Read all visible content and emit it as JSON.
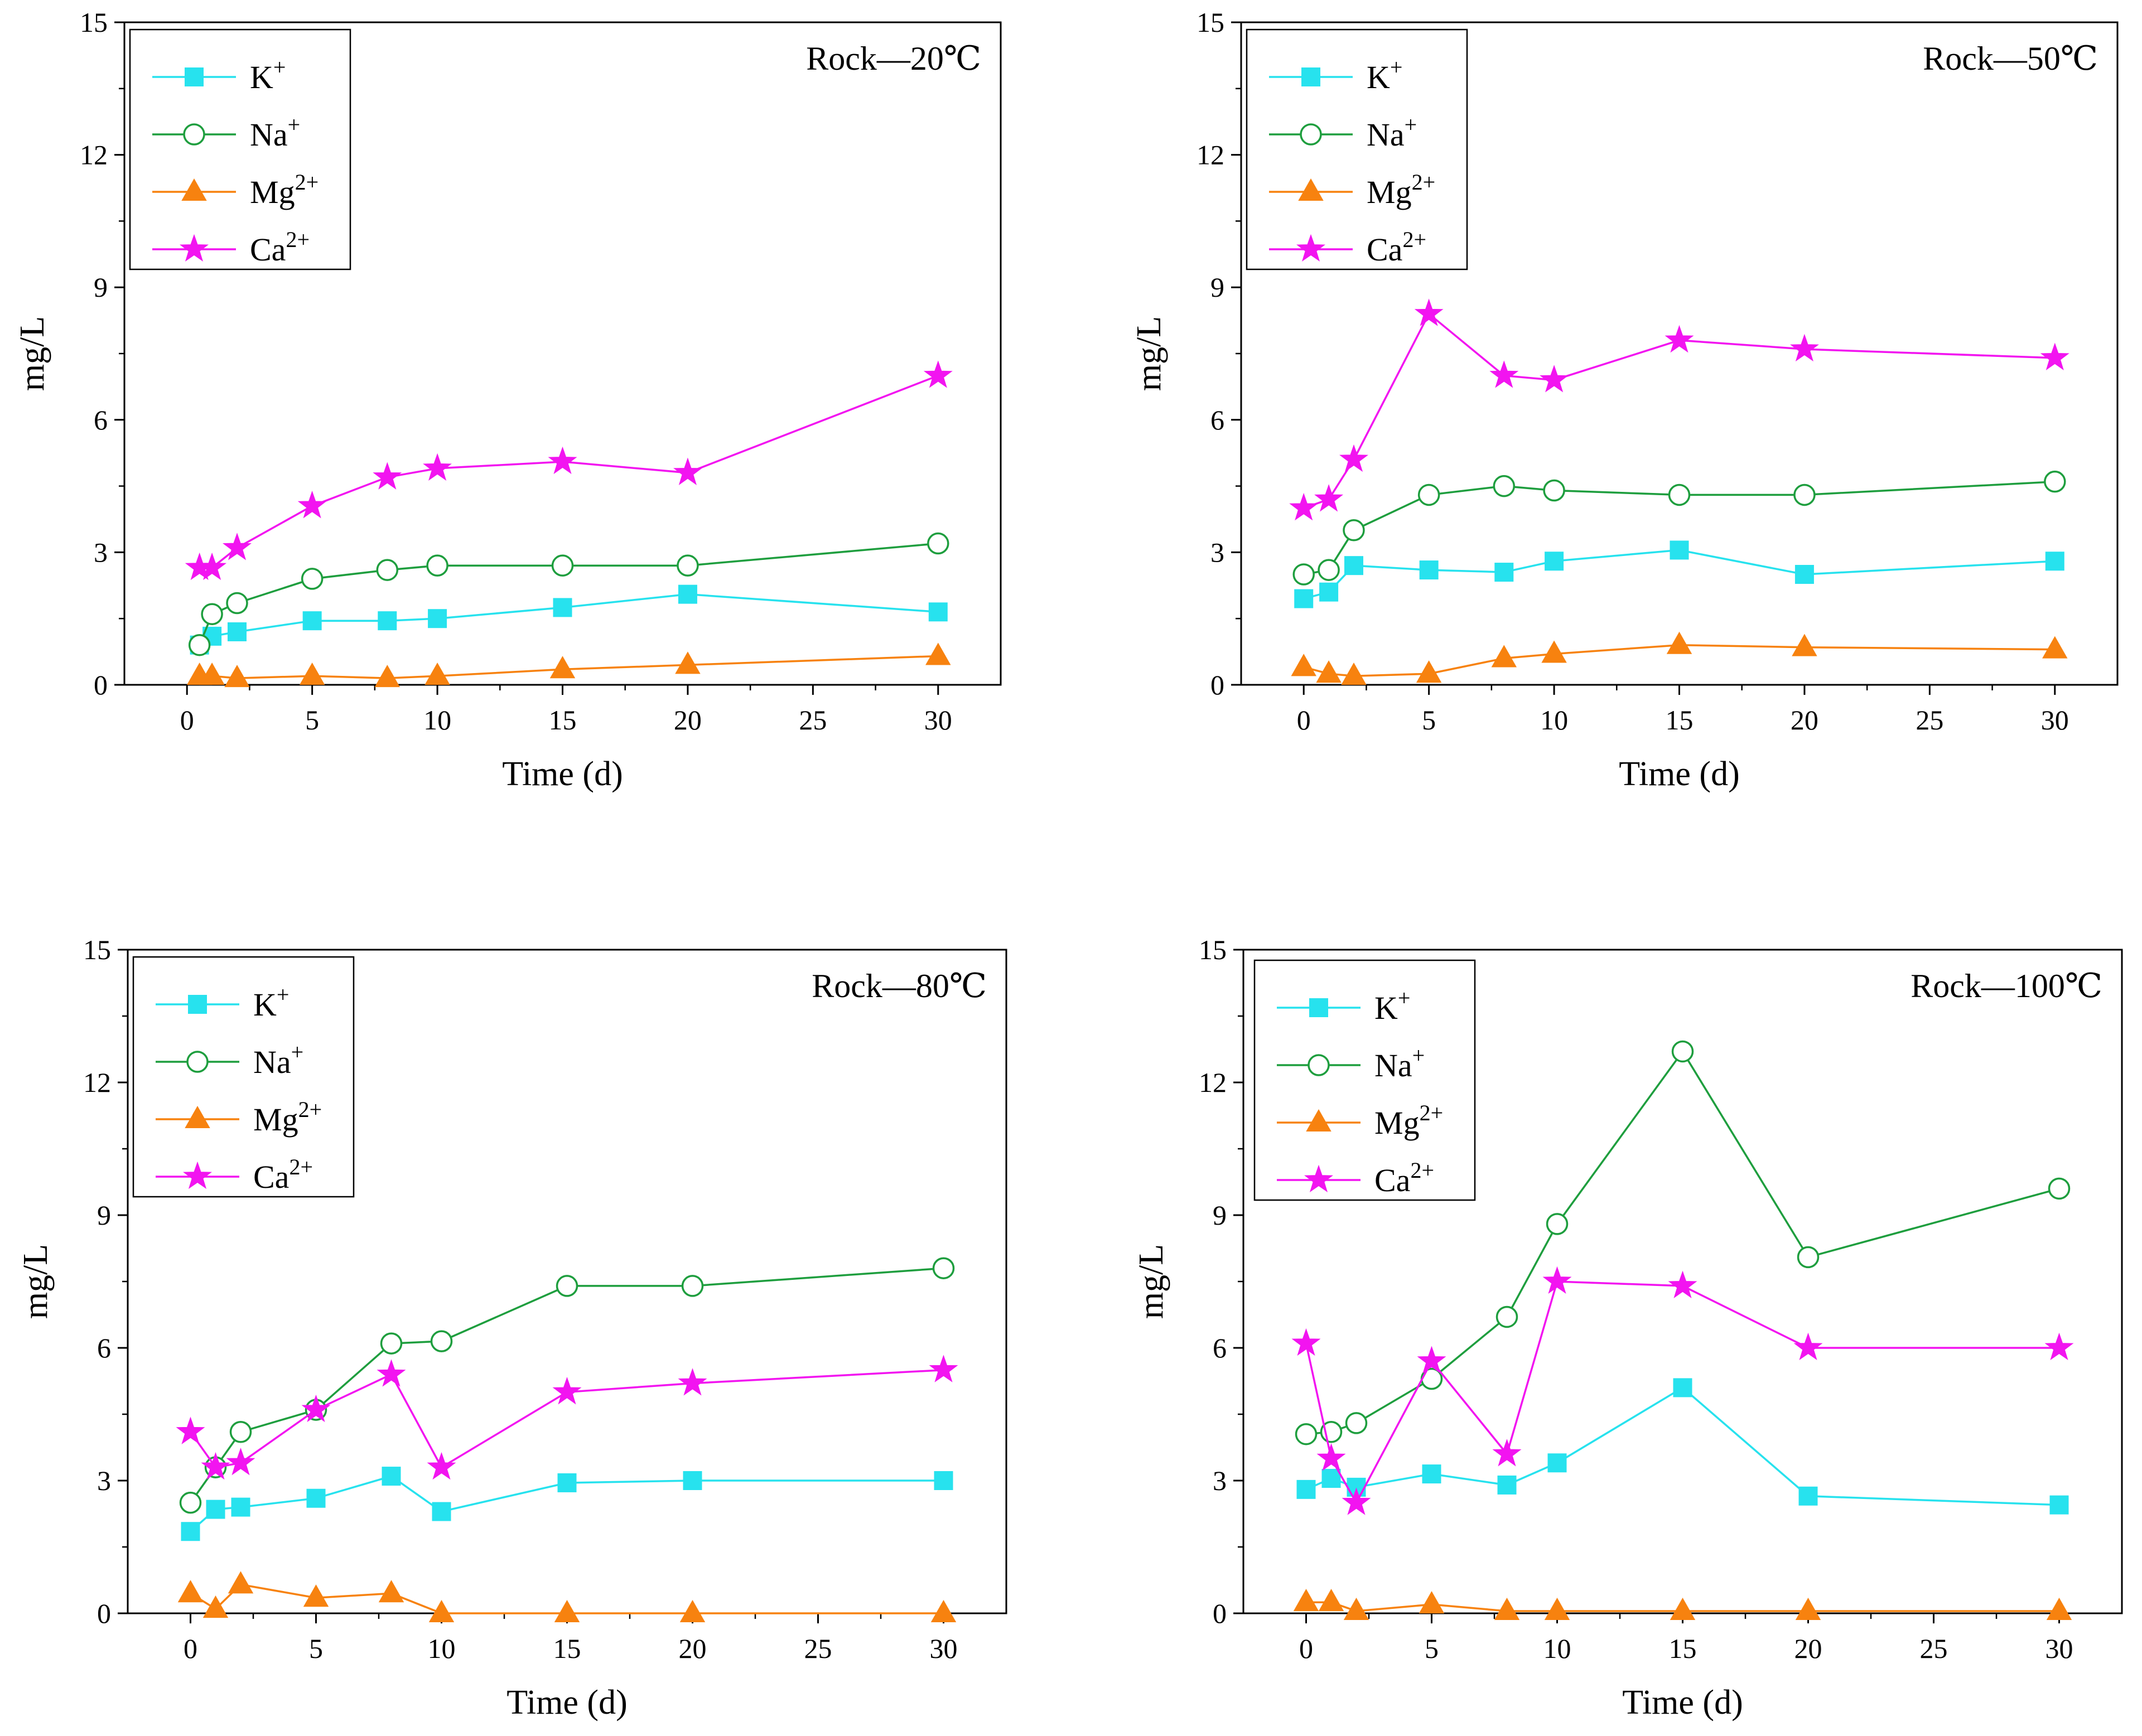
{
  "chart_data": [
    {
      "type": "line",
      "title": "Rock—20℃",
      "xlabel": "Time (d)",
      "ylabel": "mg/L",
      "xlim": [
        -2.5,
        32.5
      ],
      "ylim": [
        0,
        15
      ],
      "xticks": [
        0,
        5,
        10,
        15,
        20,
        25,
        30
      ],
      "yticks": [
        0,
        3,
        6,
        9,
        12,
        15
      ],
      "legend_position": "top-left",
      "series": [
        {
          "name": "K+",
          "base": "K",
          "sup": "+",
          "color": "#27E2EE",
          "marker": "square",
          "x": [
            0.5,
            1,
            2,
            5,
            8,
            10,
            15,
            20,
            30
          ],
          "y": [
            0.9,
            1.1,
            1.2,
            1.45,
            1.45,
            1.5,
            1.75,
            2.05,
            1.65
          ]
        },
        {
          "name": "Na+",
          "base": "Na",
          "sup": "+",
          "color": "#1E9E3E",
          "marker": "circle",
          "x": [
            0.5,
            1,
            2,
            5,
            8,
            10,
            15,
            20,
            30
          ],
          "y": [
            0.9,
            1.6,
            1.85,
            2.4,
            2.6,
            2.7,
            2.7,
            2.7,
            3.2
          ]
        },
        {
          "name": "Mg2+",
          "base": "Mg",
          "sup": "2+",
          "color": "#F7820F",
          "marker": "triangle",
          "x": [
            0.5,
            1,
            2,
            5,
            8,
            10,
            15,
            20,
            30
          ],
          "y": [
            0.2,
            0.2,
            0.15,
            0.2,
            0.15,
            0.2,
            0.35,
            0.45,
            0.65
          ]
        },
        {
          "name": "Ca2+",
          "base": "Ca",
          "sup": "2+",
          "color": "#F214F0",
          "marker": "star",
          "x": [
            0.5,
            1,
            2,
            5,
            8,
            10,
            15,
            20,
            30
          ],
          "y": [
            2.65,
            2.65,
            3.1,
            4.05,
            4.7,
            4.9,
            5.05,
            4.8,
            7.0
          ]
        }
      ]
    },
    {
      "type": "line",
      "title": "Rock—50℃",
      "xlabel": "Time (d)",
      "ylabel": "mg/L",
      "xlim": [
        -2.5,
        32.5
      ],
      "ylim": [
        0,
        15
      ],
      "xticks": [
        0,
        5,
        10,
        15,
        20,
        25,
        30
      ],
      "yticks": [
        0,
        3,
        6,
        9,
        12,
        15
      ],
      "legend_position": "top-left",
      "series": [
        {
          "name": "K+",
          "base": "K",
          "sup": "+",
          "color": "#27E2EE",
          "marker": "square",
          "x": [
            0,
            1,
            2,
            5,
            8,
            10,
            15,
            20,
            30
          ],
          "y": [
            1.95,
            2.1,
            2.7,
            2.6,
            2.55,
            2.8,
            3.05,
            2.5,
            2.8
          ]
        },
        {
          "name": "Na+",
          "base": "Na",
          "sup": "+",
          "color": "#1E9E3E",
          "marker": "circle",
          "x": [
            0,
            1,
            2,
            5,
            8,
            10,
            15,
            20,
            30
          ],
          "y": [
            2.5,
            2.6,
            3.5,
            4.3,
            4.5,
            4.4,
            4.3,
            4.3,
            4.6
          ]
        },
        {
          "name": "Mg2+",
          "base": "Mg",
          "sup": "2+",
          "color": "#F7820F",
          "marker": "triangle",
          "x": [
            0,
            1,
            2,
            5,
            8,
            10,
            15,
            20,
            30
          ],
          "y": [
            0.4,
            0.25,
            0.2,
            0.25,
            0.6,
            0.7,
            0.9,
            0.85,
            0.8
          ]
        },
        {
          "name": "Ca2+",
          "base": "Ca",
          "sup": "2+",
          "color": "#F214F0",
          "marker": "star",
          "x": [
            0,
            1,
            2,
            5,
            8,
            10,
            15,
            20,
            30
          ],
          "y": [
            4.0,
            4.2,
            5.1,
            8.4,
            7.0,
            6.9,
            7.8,
            7.6,
            7.4
          ]
        }
      ]
    },
    {
      "type": "line",
      "title": "Rock—80℃",
      "xlabel": "Time (d)",
      "ylabel": "mg/L",
      "xlim": [
        -2.5,
        32.5
      ],
      "ylim": [
        0,
        15
      ],
      "xticks": [
        0,
        5,
        10,
        15,
        20,
        25,
        30
      ],
      "yticks": [
        0,
        3,
        6,
        9,
        12,
        15
      ],
      "legend_position": "top-left",
      "series": [
        {
          "name": "K+",
          "base": "K",
          "sup": "+",
          "color": "#27E2EE",
          "marker": "square",
          "x": [
            0,
            1,
            2,
            5,
            8,
            10,
            15,
            20,
            30
          ],
          "y": [
            1.85,
            2.35,
            2.4,
            2.6,
            3.1,
            2.3,
            2.95,
            3.0,
            3.0
          ]
        },
        {
          "name": "Na+",
          "base": "Na",
          "sup": "+",
          "color": "#1E9E3E",
          "marker": "circle",
          "x": [
            0,
            1,
            2,
            5,
            8,
            10,
            15,
            20,
            30
          ],
          "y": [
            2.5,
            3.3,
            4.1,
            4.6,
            6.1,
            6.15,
            7.4,
            7.4,
            7.8
          ]
        },
        {
          "name": "Mg2+",
          "base": "Mg",
          "sup": "2+",
          "color": "#F7820F",
          "marker": "triangle",
          "x": [
            0,
            1,
            2,
            5,
            8,
            10,
            15,
            20,
            30
          ],
          "y": [
            0.45,
            0.1,
            0.65,
            0.35,
            0.45,
            0.0,
            0.0,
            0.0,
            0.0
          ]
        },
        {
          "name": "Ca2+",
          "base": "Ca",
          "sup": "2+",
          "color": "#F214F0",
          "marker": "star",
          "x": [
            0,
            1,
            2,
            5,
            8,
            10,
            15,
            20,
            30
          ],
          "y": [
            4.1,
            3.3,
            3.4,
            4.6,
            5.4,
            3.3,
            5.0,
            5.2,
            5.5
          ]
        }
      ]
    },
    {
      "type": "line",
      "title": "Rock—100℃",
      "xlabel": "Time (d)",
      "ylabel": "mg/L",
      "xlim": [
        -2.5,
        32.5
      ],
      "ylim": [
        0,
        15
      ],
      "xticks": [
        0,
        5,
        10,
        15,
        20,
        25,
        30
      ],
      "yticks": [
        0,
        3,
        6,
        9,
        12,
        15
      ],
      "legend_position": "top-left",
      "series": [
        {
          "name": "K+",
          "base": "K",
          "sup": "+",
          "color": "#27E2EE",
          "marker": "square",
          "x": [
            0,
            1,
            2,
            5,
            8,
            10,
            15,
            20,
            30
          ],
          "y": [
            2.8,
            3.05,
            2.85,
            3.15,
            2.9,
            3.4,
            5.1,
            2.65,
            2.45
          ]
        },
        {
          "name": "Na+",
          "base": "Na",
          "sup": "+",
          "color": "#1E9E3E",
          "marker": "circle",
          "x": [
            0,
            1,
            2,
            5,
            8,
            10,
            15,
            20,
            30
          ],
          "y": [
            4.05,
            4.1,
            4.3,
            5.3,
            6.7,
            8.8,
            12.7,
            8.05,
            9.6
          ]
        },
        {
          "name": "Mg2+",
          "base": "Mg",
          "sup": "2+",
          "color": "#F7820F",
          "marker": "triangle",
          "x": [
            0,
            1,
            2,
            5,
            8,
            10,
            15,
            20,
            30
          ],
          "y": [
            0.25,
            0.25,
            0.05,
            0.2,
            0.05,
            0.05,
            0.05,
            0.05,
            0.05
          ]
        },
        {
          "name": "Ca2+",
          "base": "Ca",
          "sup": "2+",
          "color": "#F214F0",
          "marker": "star",
          "x": [
            0,
            1,
            2,
            5,
            8,
            10,
            15,
            20,
            30
          ],
          "y": [
            6.1,
            3.5,
            2.5,
            5.7,
            3.6,
            7.5,
            7.4,
            6.0,
            6.0
          ]
        }
      ]
    }
  ]
}
